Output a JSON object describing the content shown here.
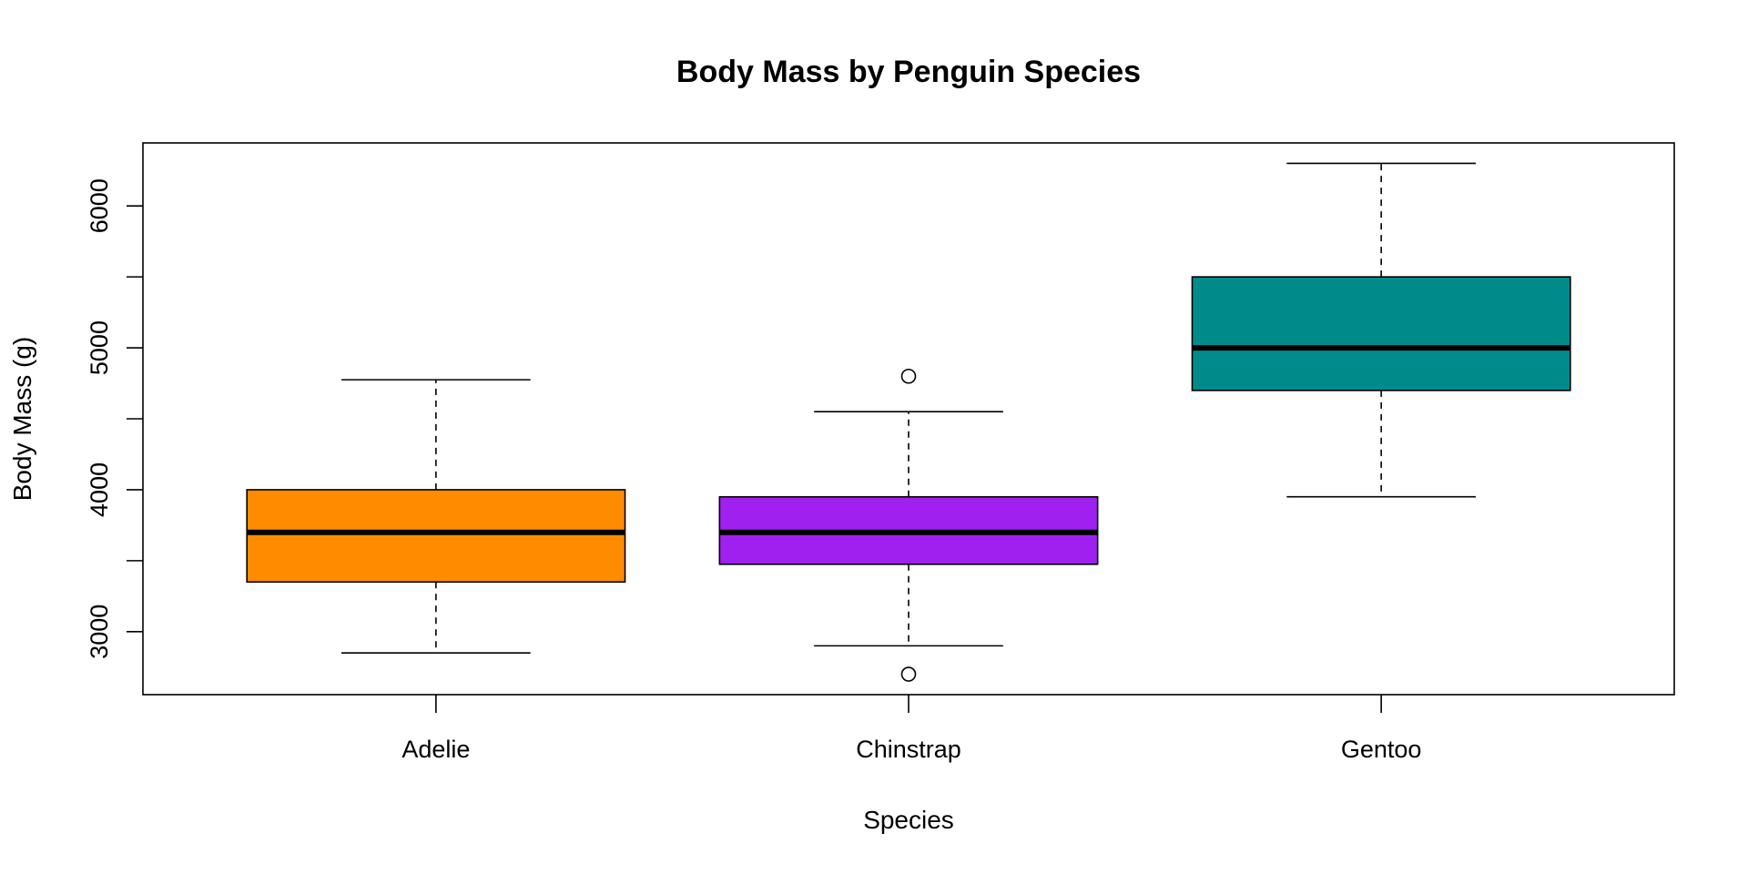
{
  "chart_data": {
    "type": "boxplot",
    "title": "Body Mass by Penguin Species",
    "xlabel": "Species",
    "ylabel": "Body Mass (g)",
    "ylim": [
      2556,
      6444
    ],
    "yticks": [
      3000,
      3500,
      4000,
      4500,
      5000,
      5500,
      6000
    ],
    "ytick_labels": [
      "3000",
      "",
      "4000",
      "",
      "5000",
      "",
      "6000"
    ],
    "categories": [
      "Adelie",
      "Chinstrap",
      "Gentoo"
    ],
    "grid": false,
    "boxes": [
      {
        "name": "Adelie",
        "whisker_low": 2850,
        "q1": 3350,
        "median": 3700,
        "q3": 4000,
        "whisker_high": 4775,
        "outliers": [],
        "color": "#FF8C00"
      },
      {
        "name": "Chinstrap",
        "whisker_low": 2900,
        "q1": 3475,
        "median": 3700,
        "q3": 3950,
        "whisker_high": 4550,
        "outliers": [
          4800,
          2700
        ],
        "color": "#A020F0"
      },
      {
        "name": "Gentoo",
        "whisker_low": 3950,
        "q1": 4700,
        "median": 5000,
        "q3": 5500,
        "whisker_high": 6300,
        "outliers": [],
        "color": "#008B8B"
      }
    ]
  }
}
